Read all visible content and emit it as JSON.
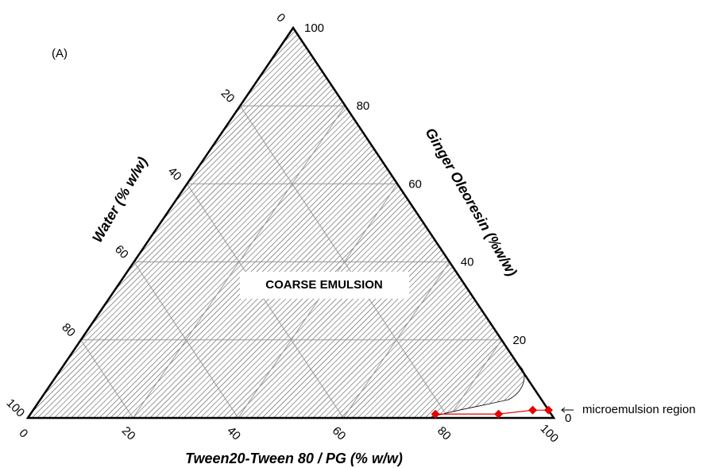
{
  "chart_data": {
    "type": "ternary",
    "panel_label": "(A)",
    "region_label": "COARSE EMULSION",
    "annotation": "microemulsion region",
    "bottom_axis": {
      "label": "Tween20-Tween 80 / PG (% w/w)",
      "ticks": [
        0,
        20,
        40,
        60,
        80,
        100
      ]
    },
    "right_axis": {
      "label": "Ginger Oleoresin (%w/w)",
      "ticks": [
        0,
        20,
        40,
        60,
        80,
        100
      ]
    },
    "left_axis": {
      "label": "Water (% w/w)",
      "ticks": [
        0,
        20,
        40,
        60,
        80,
        100
      ]
    },
    "grid": true,
    "points": {
      "color": "#e60000",
      "tween": [
        77,
        89,
        95,
        98
      ],
      "oleoresin": [
        1,
        1,
        2,
        2
      ],
      "water": [
        22,
        10,
        3,
        0
      ]
    }
  }
}
